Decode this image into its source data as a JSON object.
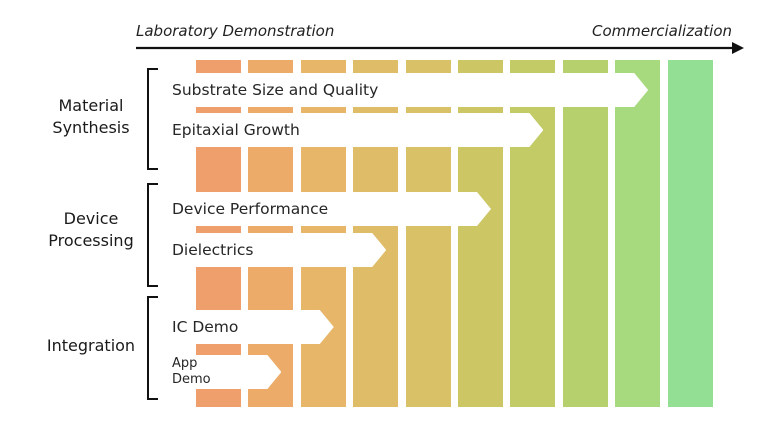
{
  "axis": {
    "left_label": "Laboratory Demonstration",
    "right_label": "Commercialization"
  },
  "column_colors": [
    "#ef9f6c",
    "#ecab69",
    "#e7b668",
    "#dfbc67",
    "#d8c166",
    "#ccc665",
    "#c3cb66",
    "#b6d06d",
    "#a7da7f",
    "#93df94"
  ],
  "groups": [
    {
      "label": "Material\nSynthesis",
      "items": [
        {
          "label": "Substrate Size and Quality",
          "reach": 8
        },
        {
          "label": "Epitaxial Growth",
          "reach": 6
        }
      ]
    },
    {
      "label": "Device\nProcessing",
      "items": [
        {
          "label": "Device Performance",
          "reach": 5
        },
        {
          "label": "Dielectrics",
          "reach": 3
        }
      ]
    },
    {
      "label": "Integration",
      "items": [
        {
          "label": "IC Demo",
          "reach": 2
        },
        {
          "label": "App\nDemo",
          "reach": 1
        }
      ]
    }
  ]
}
